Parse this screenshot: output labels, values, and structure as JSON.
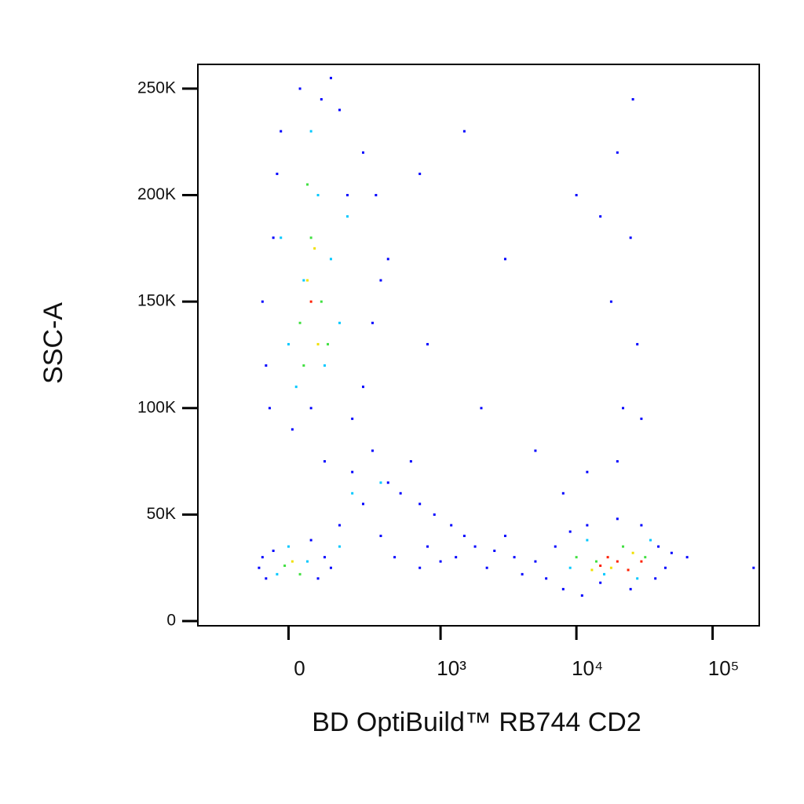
{
  "chart_data": {
    "type": "scatter",
    "x_label": "BD OptiBuild™ RB744 CD2",
    "y_label": "SSC-A",
    "xscale": "biexponential",
    "xlim": [
      -340,
      220000
    ],
    "xticks": [
      0,
      {
        "value": 1000,
        "label": "10³"
      },
      {
        "value": 10000,
        "label": "10⁴"
      },
      {
        "value": 100000,
        "label": "10⁵"
      }
    ],
    "ylim": [
      -2200,
      261400
    ],
    "yticks": [
      0,
      {
        "value": 50000,
        "label": "50K"
      },
      {
        "value": 100000,
        "label": "100K"
      },
      {
        "value": 150000,
        "label": "150K"
      },
      {
        "value": 200000,
        "label": "200K"
      },
      {
        "value": 250000,
        "label": "250K"
      }
    ],
    "series": [
      {
        "color": "#0000ff",
        "x": [
          -60,
          -40,
          -20,
          30,
          90,
          150,
          250,
          320,
          400,
          300,
          250,
          200,
          -50,
          -70,
          -30,
          180,
          350,
          120,
          60,
          10,
          100,
          200,
          300,
          400,
          500,
          700,
          900,
          1200,
          1500,
          600,
          250,
          150,
          350,
          800,
          450,
          1000,
          1300,
          1800,
          2500,
          3500,
          5000,
          2200,
          3000,
          4000,
          700,
          -80,
          -60,
          -40,
          80,
          100,
          60,
          -70,
          120,
          6000,
          7000,
          8000,
          9000,
          12000,
          15000,
          20000,
          30000,
          40000,
          45000,
          38000,
          11000,
          25000,
          50000,
          10000,
          15000,
          20000,
          25000,
          28000,
          18000,
          22000,
          30000,
          12000,
          26000,
          8000,
          20000,
          5000,
          3000,
          2000,
          1500,
          700,
          800,
          65000,
          200000
        ],
        "values": [
          120000,
          180000,
          230000,
          250000,
          245000,
          240000,
          220000,
          200000,
          170000,
          140000,
          110000,
          95000,
          100000,
          150000,
          210000,
          200000,
          160000,
          255000,
          100000,
          90000,
          75000,
          70000,
          80000,
          65000,
          60000,
          55000,
          50000,
          45000,
          40000,
          75000,
          55000,
          45000,
          40000,
          35000,
          30000,
          28000,
          30000,
          35000,
          33000,
          30000,
          28000,
          25000,
          40000,
          22000,
          25000,
          25000,
          20000,
          33000,
          20000,
          30000,
          38000,
          30000,
          25000,
          20000,
          35000,
          15000,
          42000,
          45000,
          18000,
          48000,
          45000,
          35000,
          25000,
          20000,
          12000,
          15000,
          32000,
          200000,
          190000,
          220000,
          180000,
          130000,
          150000,
          100000,
          95000,
          70000,
          245000,
          60000,
          75000,
          80000,
          170000,
          100000,
          230000,
          210000,
          130000,
          30000,
          25000
        ]
      },
      {
        "color": "#00c8ff",
        "x": [
          0,
          40,
          80,
          120,
          60,
          150,
          20,
          100,
          -20,
          180,
          -30,
          50,
          0,
          200,
          350,
          150,
          9000,
          12000,
          35000,
          16000,
          28000
        ],
        "values": [
          130000,
          160000,
          200000,
          170000,
          230000,
          140000,
          110000,
          120000,
          180000,
          190000,
          22000,
          28000,
          35000,
          60000,
          65000,
          35000,
          25000,
          38000,
          38000,
          22000,
          20000
        ]
      },
      {
        "color": "#40e040",
        "x": [
          30,
          60,
          90,
          50,
          110,
          40,
          -10,
          30,
          14000,
          22000,
          32000,
          10000
        ],
        "values": [
          140000,
          180000,
          150000,
          205000,
          130000,
          120000,
          26000,
          22000,
          28000,
          35000,
          30000,
          30000
        ]
      },
      {
        "color": "#f0e000",
        "x": [
          50,
          80,
          70,
          10,
          18000,
          26000,
          13000
        ],
        "values": [
          160000,
          130000,
          175000,
          28000,
          25000,
          32000,
          24000
        ]
      },
      {
        "color": "#ff2000",
        "x": [
          60,
          20000,
          24000,
          17000,
          30000,
          15000
        ],
        "values": [
          150000,
          28000,
          24000,
          30000,
          28000,
          26000
        ]
      }
    ]
  }
}
